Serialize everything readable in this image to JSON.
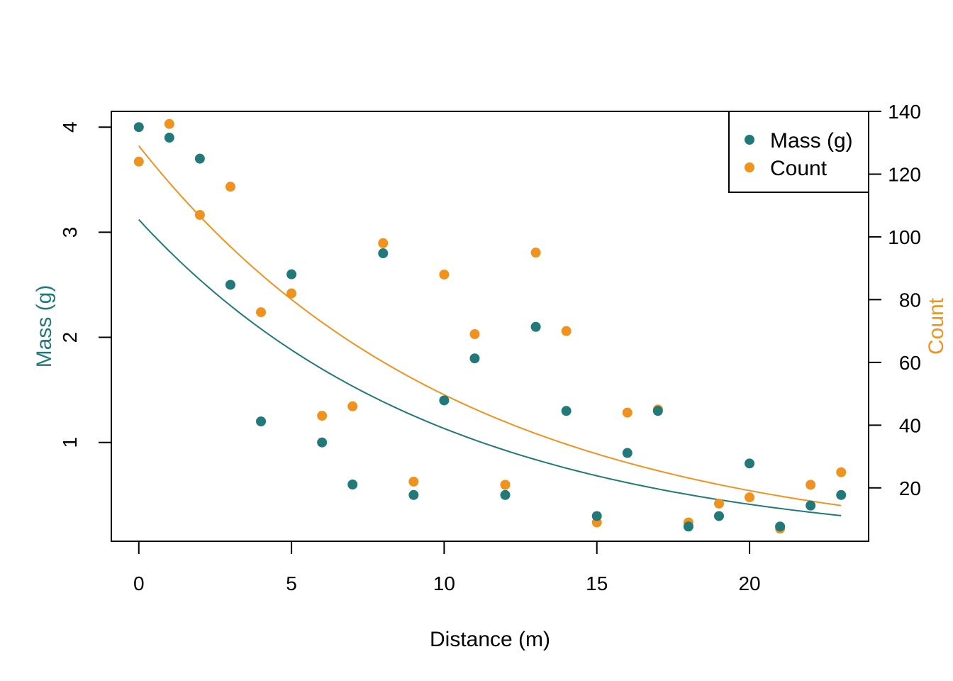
{
  "chart_data": {
    "type": "scatter",
    "xlabel": "Distance (m)",
    "ylabel_left": "Mass (g)",
    "ylabel_right": "Count",
    "xlim": [
      -0.9,
      23.9
    ],
    "ylim_left": [
      0.06,
      4.15
    ],
    "ylim_right": [
      3,
      140
    ],
    "x_ticks": [
      0,
      5,
      10,
      15,
      20
    ],
    "y_left_ticks": [
      1,
      2,
      3,
      4
    ],
    "y_right_ticks": [
      20,
      40,
      60,
      80,
      100,
      120,
      140
    ],
    "legend_position": "top-right",
    "x": [
      0,
      1,
      2,
      3,
      4,
      5,
      6,
      7,
      8,
      9,
      10,
      11,
      12,
      13,
      14,
      15,
      16,
      17,
      18,
      19,
      20,
      21,
      22,
      23
    ],
    "series": [
      {
        "name": "Mass (g)",
        "axis": "left",
        "color": "#217a79",
        "values": [
          4.0,
          3.9,
          3.7,
          2.5,
          1.2,
          2.6,
          1.0,
          0.6,
          2.8,
          0.5,
          1.4,
          1.8,
          0.5,
          2.1,
          1.3,
          0.3,
          0.9,
          1.3,
          0.2,
          0.3,
          0.8,
          0.2,
          0.4,
          0.5
        ],
        "fit": {
          "type": "exponential",
          "a": 3.12,
          "b": -0.1013
        }
      },
      {
        "name": "Count",
        "axis": "right",
        "color": "#f0921e",
        "values": [
          124,
          136,
          107,
          116,
          76,
          82,
          43,
          46,
          98,
          22,
          88,
          69,
          21,
          95,
          70,
          9,
          44,
          45,
          9,
          15,
          17,
          7,
          21,
          25
        ],
        "fit": {
          "type": "exponential",
          "a": 129,
          "b": -0.0954
        }
      }
    ]
  }
}
